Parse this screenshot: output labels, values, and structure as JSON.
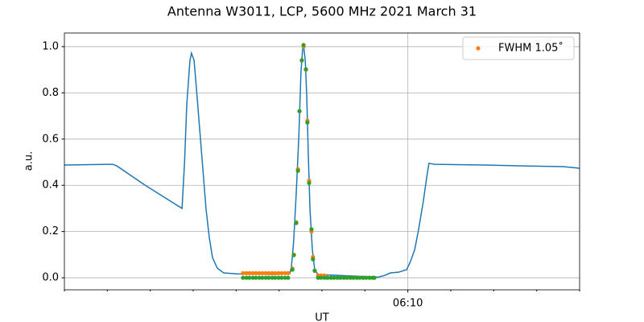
{
  "chart_data": {
    "type": "line",
    "title": "Antenna W3011, LCP, 5600 MHz 2021 March 31",
    "xlabel": "UT",
    "ylabel": "a.u.",
    "xlim": [
      2,
      14
    ],
    "ylim": [
      -0.052,
      1.059
    ],
    "xticks": [
      {
        "value": 10,
        "label": "06:10"
      }
    ],
    "xminorticks": [
      2,
      3,
      4,
      5,
      6,
      7,
      8,
      9,
      11,
      12,
      13,
      14
    ],
    "yticks": [
      {
        "value": 0,
        "label": "0.0"
      },
      0.2,
      0.4,
      0.6,
      0.8,
      {
        "value": 1,
        "label": "1.0"
      }
    ],
    "grid": true,
    "legend": "upper right",
    "series": [
      {
        "type": "line",
        "color": "#1f77b4",
        "x": [
          2.0,
          3.125,
          3.22,
          3.875,
          4.74,
          4.8,
          4.85,
          4.925,
          4.96,
          5.02,
          5.075,
          5.15,
          5.225,
          5.3,
          5.375,
          5.45,
          5.56,
          5.71,
          6.03,
          6.875,
          7.25,
          7.29,
          7.34,
          7.4,
          7.46,
          7.51,
          7.55,
          7.57,
          7.61,
          7.645,
          7.68,
          7.72,
          7.775,
          7.83,
          7.91,
          9.31,
          9.46,
          9.59,
          9.78,
          9.97,
          10.06,
          10.16,
          10.25,
          10.36,
          10.44,
          10.49,
          10.625,
          11.75,
          12.69,
          13.625,
          14.0
        ],
        "values": [
          0.488,
          0.491,
          0.484,
          0.401,
          0.3,
          0.505,
          0.749,
          0.941,
          0.972,
          0.941,
          0.819,
          0.645,
          0.47,
          0.296,
          0.174,
          0.087,
          0.042,
          0.021,
          0.017,
          0.014,
          0.017,
          0.052,
          0.157,
          0.366,
          0.61,
          0.889,
          0.993,
          1.007,
          0.941,
          0.784,
          0.54,
          0.296,
          0.122,
          0.035,
          0.014,
          0.003,
          0.01,
          0.021,
          0.024,
          0.035,
          0.07,
          0.122,
          0.209,
          0.331,
          0.436,
          0.495,
          0.491,
          0.488,
          0.484,
          0.481,
          0.474
        ]
      },
      {
        "type": "scatter",
        "name": "FWHM 1.05˚",
        "color": "#ff7f0e",
        "x": [
          6.16,
          6.24,
          6.31,
          6.39,
          6.46,
          6.54,
          6.61,
          6.69,
          6.76,
          6.84,
          6.91,
          6.99,
          7.06,
          7.14,
          7.21,
          7.31,
          7.345,
          7.4,
          7.44,
          7.475,
          7.53,
          7.57,
          7.625,
          7.66,
          7.7,
          7.755,
          7.79,
          7.83,
          7.91,
          7.98,
          8.06,
          8.13,
          8.21,
          8.28,
          8.36,
          8.43,
          8.51,
          8.58,
          8.66,
          8.73,
          8.81,
          8.88,
          8.96,
          9.03,
          9.11,
          9.18,
          9.22
        ],
        "values": [
          0.02,
          0.02,
          0.02,
          0.02,
          0.02,
          0.02,
          0.02,
          0.02,
          0.02,
          0.02,
          0.02,
          0.02,
          0.02,
          0.02,
          0.02,
          0.04,
          0.1,
          0.24,
          0.47,
          0.72,
          0.94,
          1.0,
          0.9,
          0.68,
          0.42,
          0.2,
          0.09,
          0.03,
          0.01,
          0.01,
          0.01,
          0,
          0,
          0,
          0,
          0,
          0,
          0,
          0,
          0,
          0,
          0,
          0,
          0,
          0,
          0,
          0
        ]
      },
      {
        "type": "scatter",
        "color": "#2ca02c",
        "x": [
          6.16,
          6.24,
          6.31,
          6.39,
          6.46,
          6.54,
          6.61,
          6.69,
          6.76,
          6.84,
          6.91,
          6.99,
          7.06,
          7.14,
          7.21,
          7.31,
          7.345,
          7.4,
          7.44,
          7.475,
          7.53,
          7.57,
          7.625,
          7.66,
          7.7,
          7.755,
          7.79,
          7.83,
          7.91,
          7.98,
          8.06,
          8.13,
          8.21,
          8.28,
          8.36,
          8.43,
          8.51,
          8.58,
          8.66,
          8.73,
          8.81,
          8.88,
          8.96,
          9.03,
          9.11,
          9.18,
          9.22
        ],
        "values": [
          0,
          0,
          0,
          0,
          0,
          0,
          0,
          0,
          0,
          0,
          0,
          0,
          0,
          0,
          0,
          0.035,
          0.098,
          0.237,
          0.463,
          0.721,
          0.941,
          1.007,
          0.902,
          0.672,
          0.41,
          0.21,
          0.08,
          0.031,
          0,
          0,
          0,
          0,
          0,
          0,
          0,
          0,
          0,
          0,
          0,
          0,
          0,
          0,
          0,
          0,
          0,
          0,
          0
        ]
      }
    ]
  }
}
